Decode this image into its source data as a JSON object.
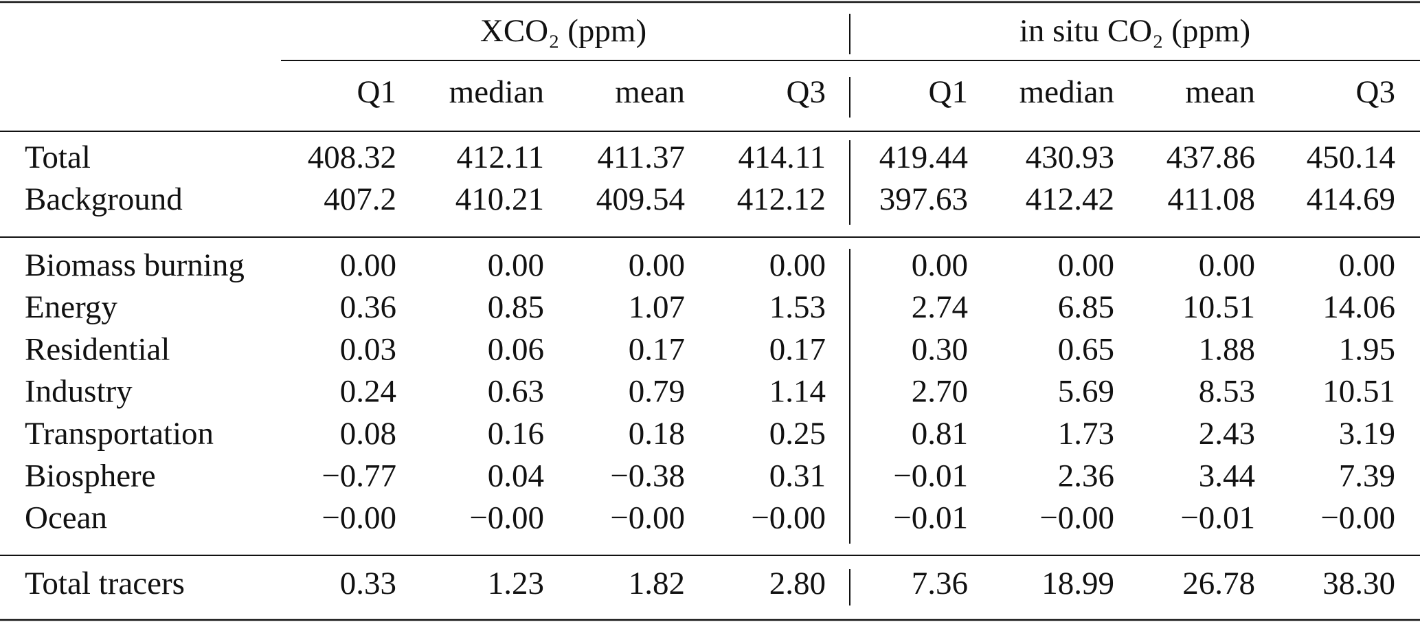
{
  "table": {
    "group_headers": [
      "XCO₂ (ppm)",
      "in situ CO₂ (ppm)"
    ],
    "column_headers": [
      "Q1",
      "median",
      "mean",
      "Q3",
      "Q1",
      "median",
      "mean",
      "Q3"
    ],
    "sections": [
      {
        "rows": [
          {
            "label": "Total",
            "values": [
              "408.32",
              "412.11",
              "411.37",
              "414.11",
              "419.44",
              "430.93",
              "437.86",
              "450.14"
            ]
          },
          {
            "label": "Background",
            "values": [
              "407.2",
              "410.21",
              "409.54",
              "412.12",
              "397.63",
              "412.42",
              "411.08",
              "414.69"
            ]
          }
        ]
      },
      {
        "rows": [
          {
            "label": "Biomass burning",
            "values": [
              "0.00",
              "0.00",
              "0.00",
              "0.00",
              "0.00",
              "0.00",
              "0.00",
              "0.00"
            ]
          },
          {
            "label": "Energy",
            "values": [
              "0.36",
              "0.85",
              "1.07",
              "1.53",
              "2.74",
              "6.85",
              "10.51",
              "14.06"
            ]
          },
          {
            "label": "Residential",
            "values": [
              "0.03",
              "0.06",
              "0.17",
              "0.17",
              "0.30",
              "0.65",
              "1.88",
              "1.95"
            ]
          },
          {
            "label": "Industry",
            "values": [
              "0.24",
              "0.63",
              "0.79",
              "1.14",
              "2.70",
              "5.69",
              "8.53",
              "10.51"
            ]
          },
          {
            "label": "Transportation",
            "values": [
              "0.08",
              "0.16",
              "0.18",
              "0.25",
              "0.81",
              "1.73",
              "2.43",
              "3.19"
            ]
          },
          {
            "label": "Biosphere",
            "values": [
              "−0.77",
              "0.04",
              "−0.38",
              "0.31",
              "−0.01",
              "2.36",
              "3.44",
              "7.39"
            ]
          },
          {
            "label": "Ocean",
            "values": [
              "−0.00",
              "−0.00",
              "−0.00",
              "−0.00",
              "−0.01",
              "−0.00",
              "−0.01",
              "−0.00"
            ]
          }
        ]
      },
      {
        "rows": [
          {
            "label": "Total tracers",
            "values": [
              "0.33",
              "1.23",
              "1.82",
              "2.80",
              "7.36",
              "18.99",
              "26.78",
              "38.30"
            ]
          }
        ]
      }
    ]
  }
}
